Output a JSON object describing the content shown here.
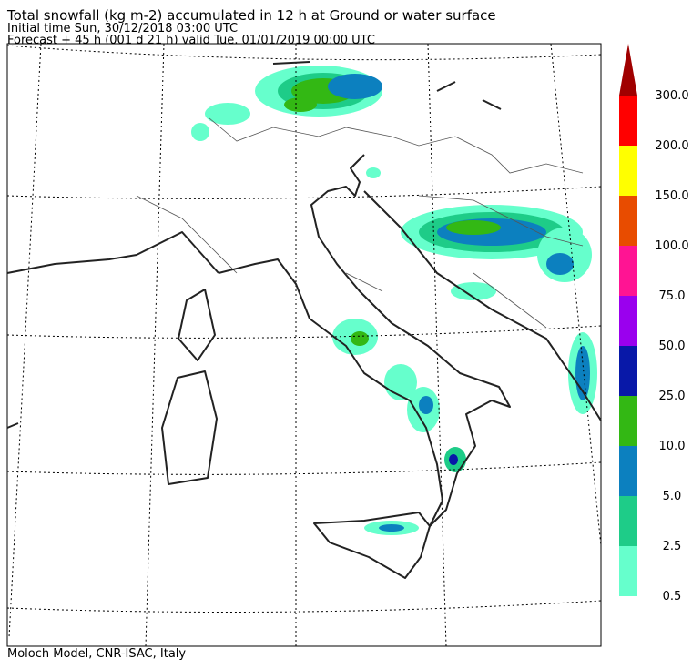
{
  "header": {
    "title": "Total snowfall (kg m-2) accumulated in  12 h at Ground or water surface",
    "initial_time": "Initial time  Sun, 30/12/2018  03:00 UTC",
    "forecast": "Forecast  +  45 h  (001 d 21 h)  valid Tue, 01/01/2019 00:00 UTC"
  },
  "legend": {
    "labels": [
      "0.5",
      "2.5",
      "5.0",
      "10.0",
      "25.0",
      "50.0",
      "75.0",
      "100.0",
      "150.0",
      "200.0",
      "300.0"
    ],
    "colors": [
      "#66ffcc",
      "#1ecc88",
      "#0c80bf",
      "#33b814",
      "#0818a8",
      "#9a00ee",
      "#ff1493",
      "#e84c00",
      "#ffff00",
      "#ff0000",
      "#a00000"
    ]
  },
  "footer": "Moloch Model, CNR-ISAC, Italy"
}
